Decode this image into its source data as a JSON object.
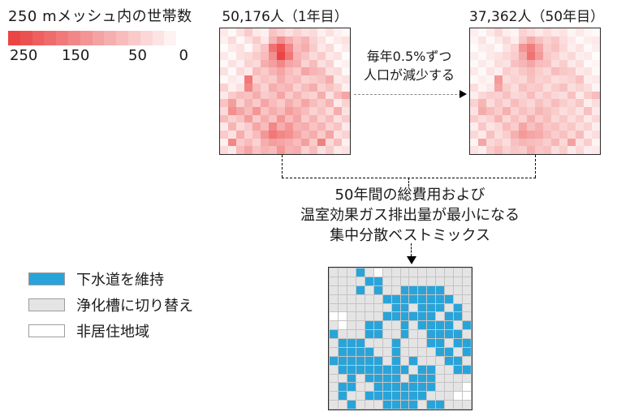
{
  "colors": {
    "heat_max": "#eb4444",
    "heat_min": "#ffffff",
    "sewer_blue": "#29a4d9",
    "septic_gray": "#e4e4e4",
    "nonres_white": "#ffffff"
  },
  "household_legend": {
    "title": "250 mメッシュ内の世帯数",
    "ticks": [
      "250",
      "150",
      "50",
      "0"
    ],
    "scale_max": 250,
    "segments": 15
  },
  "annotations": {
    "decline_line1": "毎年0.5%ずつ",
    "decline_line2": "人口が減少する",
    "objective_line1": "50年間の総費用および",
    "objective_line2": "温室効果ガス排出量が最小になる",
    "objective_line3": "集中分散ベストミックス"
  },
  "maps": {
    "year1": {
      "title": "50,176人（1年目）",
      "population": "50,176",
      "values": [
        [
          30,
          10,
          40,
          70,
          30,
          20,
          80,
          60,
          40,
          60,
          40,
          50,
          20,
          40,
          20,
          10
        ],
        [
          20,
          50,
          10,
          40,
          70,
          30,
          100,
          150,
          110,
          80,
          100,
          60,
          40,
          10,
          30,
          40
        ],
        [
          5,
          30,
          40,
          10,
          50,
          80,
          190,
          230,
          160,
          90,
          110,
          70,
          30,
          50,
          10,
          30
        ],
        [
          30,
          10,
          40,
          50,
          70,
          90,
          150,
          250,
          180,
          100,
          80,
          50,
          70,
          30,
          40,
          5
        ],
        [
          10,
          40,
          20,
          60,
          50,
          110,
          130,
          160,
          120,
          110,
          60,
          90,
          40,
          60,
          10,
          20
        ],
        [
          40,
          10,
          50,
          30,
          90,
          70,
          100,
          120,
          90,
          70,
          120,
          100,
          90,
          40,
          50,
          10
        ],
        [
          10,
          30,
          20,
          180,
          60,
          80,
          70,
          110,
          80,
          90,
          60,
          70,
          80,
          110,
          30,
          40
        ],
        [
          60,
          20,
          40,
          160,
          90,
          60,
          110,
          90,
          100,
          60,
          90,
          110,
          60,
          80,
          60,
          20
        ],
        [
          30,
          70,
          90,
          80,
          110,
          70,
          80,
          120,
          70,
          100,
          70,
          60,
          110,
          40,
          90,
          120
        ],
        [
          80,
          130,
          60,
          100,
          70,
          120,
          90,
          70,
          110,
          80,
          120,
          90,
          70,
          100,
          30,
          60
        ],
        [
          50,
          150,
          120,
          90,
          140,
          80,
          110,
          90,
          130,
          110,
          90,
          60,
          80,
          50,
          110,
          40
        ],
        [
          90,
          60,
          80,
          130,
          70,
          110,
          80,
          140,
          90,
          120,
          70,
          100,
          60,
          90,
          40,
          70
        ],
        [
          30,
          100,
          50,
          70,
          120,
          90,
          160,
          110,
          140,
          100,
          110,
          80,
          100,
          60,
          80,
          30
        ],
        [
          70,
          40,
          110,
          60,
          90,
          140,
          180,
          160,
          150,
          120,
          90,
          110,
          70,
          120,
          40,
          60
        ],
        [
          20,
          160,
          70,
          90,
          60,
          110,
          130,
          120,
          110,
          90,
          130,
          70,
          170,
          50,
          90,
          20
        ],
        [
          50,
          30,
          90,
          120,
          80,
          100,
          90,
          140,
          100,
          110,
          60,
          90,
          40,
          70,
          30,
          40
        ]
      ]
    },
    "year50": {
      "title": "37,362人（50年目）",
      "population": "37,362",
      "scale_of_year1": 0.75
    },
    "bestmix": {
      "cell_codes": {
        "B": "sewer",
        "G": "septic",
        "W": "nonres"
      },
      "rows": [
        "GGGBGWGGGGGGGGGG",
        "GGGGBBGGGGGGGGGG",
        "GGGBGBGGBBBBBGGG",
        "GGGGGGBBBBBBBBGG",
        "GGGGGGGBBGBBBGBG",
        "WWGGGGBBBBBBGBBG",
        "GWGGBBGGBGBBBBGB",
        "BGGGBBGGBGGBBBBG",
        "GBBBGGGBGGGBBGBB",
        "GBBBBGGBGGGGBBGB",
        "BBBBBBGBGBGGGBBG",
        "GBBBBBBBBGBBGGBB",
        "GGBGBBBBGBBBGGGG",
        "GBBGGBBBBBBBGGGW",
        "GBGGBBBBBBBGGGWW",
        "GGBGGGBBBBGBBGGG"
      ],
      "legend": [
        {
          "key": "B",
          "label": "下水道を維持"
        },
        {
          "key": "G",
          "label": "浄化槽に切り替え"
        },
        {
          "key": "W",
          "label": "非居住地域"
        }
      ]
    }
  }
}
